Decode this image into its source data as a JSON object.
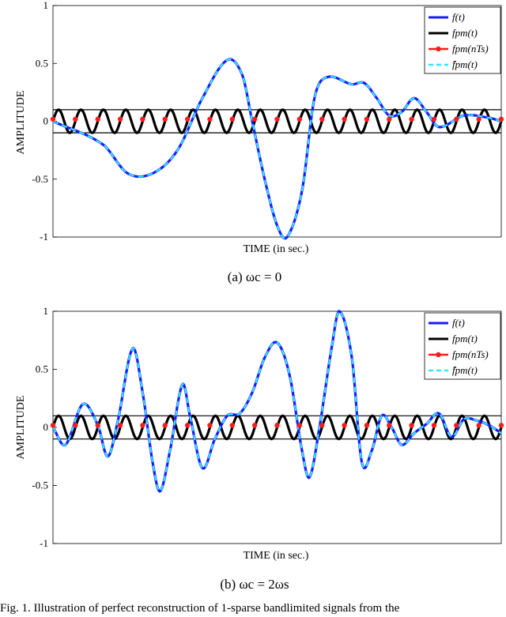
{
  "figure_caption_fragment": "Fig. 1.   Illustration of perfect reconstruction of 1-sparse bandlimited signals from the",
  "chart_data": [
    {
      "type": "line",
      "caption_prefix": "(a)",
      "caption_math": "ωc = 0",
      "xlabel": "TIME (in sec.)",
      "ylabel": "AMPLITUDE",
      "ylim": [
        -1,
        1
      ],
      "yticks": [
        "-1",
        "-0.5",
        "0",
        "0.5",
        "1"
      ],
      "grid": false,
      "legend_position": "top-right",
      "legend": [
        "f(t)",
        "fpm(t)",
        "fpm(nTs)",
        "̂fpm(t)"
      ],
      "series": [
        {
          "name": "f(t)",
          "style": "solid",
          "color": "#1a1aff",
          "points": [
            [
              0,
              0
            ],
            [
              2,
              -0.2
            ],
            [
              3,
              -0.45
            ],
            [
              4,
              -0.45
            ],
            [
              5,
              -0.25
            ],
            [
              6,
              0.2
            ],
            [
              7,
              0.53
            ],
            [
              7.6,
              0.4
            ],
            [
              8,
              0
            ],
            [
              8.5,
              -0.5
            ],
            [
              9,
              -0.9
            ],
            [
              9.4,
              -1
            ],
            [
              10,
              -0.6
            ],
            [
              10.5,
              0.2
            ],
            [
              11,
              0.38
            ],
            [
              12,
              0.32
            ],
            [
              12.5,
              0.33
            ],
            [
              13,
              0.2
            ],
            [
              13.5,
              0.05
            ],
            [
              14,
              0.08
            ],
            [
              14.5,
              0.2
            ],
            [
              15,
              0.08
            ],
            [
              15.5,
              -0.05
            ],
            [
              16.5,
              0.05
            ],
            [
              17.5,
              0.03
            ],
            [
              18,
              0
            ]
          ]
        },
        {
          "name": "fpm(t)",
          "style": "solid",
          "color": "#000000",
          "amplitude": 0.1,
          "cycles": 20
        },
        {
          "name": "fpm(nTs)",
          "style": "markers",
          "color": "#ff1a1a"
        },
        {
          "name": "̂fpm(t)",
          "style": "dashed",
          "color": "#33e6ff"
        }
      ],
      "reference_lines": [
        0.1,
        -0.1
      ]
    },
    {
      "type": "line",
      "caption_prefix": "(b)",
      "caption_math": "ωc = 2ωs",
      "xlabel": "TIME (in sec.)",
      "ylabel": "AMPLITUDE",
      "ylim": [
        -1,
        1
      ],
      "yticks": [
        "-1",
        "-0.5",
        "0",
        "0.5",
        "1"
      ],
      "grid": false,
      "legend_position": "top-right",
      "legend": [
        "f(t)",
        "fpm(t)",
        "fpm(nTs)",
        "̂fpm(t)"
      ],
      "series": [
        {
          "name": "f(t)",
          "style": "solid",
          "color": "#1a1aff",
          "points": [
            [
              0,
              0
            ],
            [
              0.5,
              -0.15
            ],
            [
              1.2,
              0.2
            ],
            [
              1.8,
              0.02
            ],
            [
              2.2,
              -0.25
            ],
            [
              2.6,
              0.05
            ],
            [
              3.2,
              0.68
            ],
            [
              3.6,
              0.3
            ],
            [
              4,
              -0.3
            ],
            [
              4.3,
              -0.55
            ],
            [
              4.7,
              -0.2
            ],
            [
              5.2,
              0.37
            ],
            [
              5.5,
              0.1
            ],
            [
              6,
              -0.35
            ],
            [
              6.5,
              -0.1
            ],
            [
              7,
              0.1
            ],
            [
              7.5,
              0.12
            ],
            [
              8,
              0.3
            ],
            [
              8.5,
              0.6
            ],
            [
              9,
              0.73
            ],
            [
              9.5,
              0.45
            ],
            [
              10,
              -0.2
            ],
            [
              10.3,
              -0.43
            ],
            [
              10.7,
              0
            ],
            [
              11.2,
              0.7
            ],
            [
              11.5,
              1
            ],
            [
              12,
              0.6
            ],
            [
              12.4,
              -0.3
            ],
            [
              12.8,
              -0.2
            ],
            [
              13.2,
              0.1
            ],
            [
              13.6,
              0
            ],
            [
              14,
              -0.15
            ],
            [
              14.5,
              -0.05
            ],
            [
              15,
              0.03
            ],
            [
              15.5,
              0.12
            ],
            [
              16,
              -0.08
            ],
            [
              16.5,
              0.07
            ],
            [
              17,
              0.06
            ],
            [
              17.5,
              0.02
            ],
            [
              18,
              -0.05
            ]
          ]
        },
        {
          "name": "fpm(t)",
          "style": "solid",
          "color": "#000000",
          "amplitude": 0.1,
          "cycles": 20
        },
        {
          "name": "fpm(nTs)",
          "style": "markers",
          "color": "#ff1a1a"
        },
        {
          "name": "̂fpm(t)",
          "style": "dashed",
          "color": "#33e6ff"
        }
      ],
      "reference_lines": [
        0.1,
        -0.1
      ]
    }
  ]
}
